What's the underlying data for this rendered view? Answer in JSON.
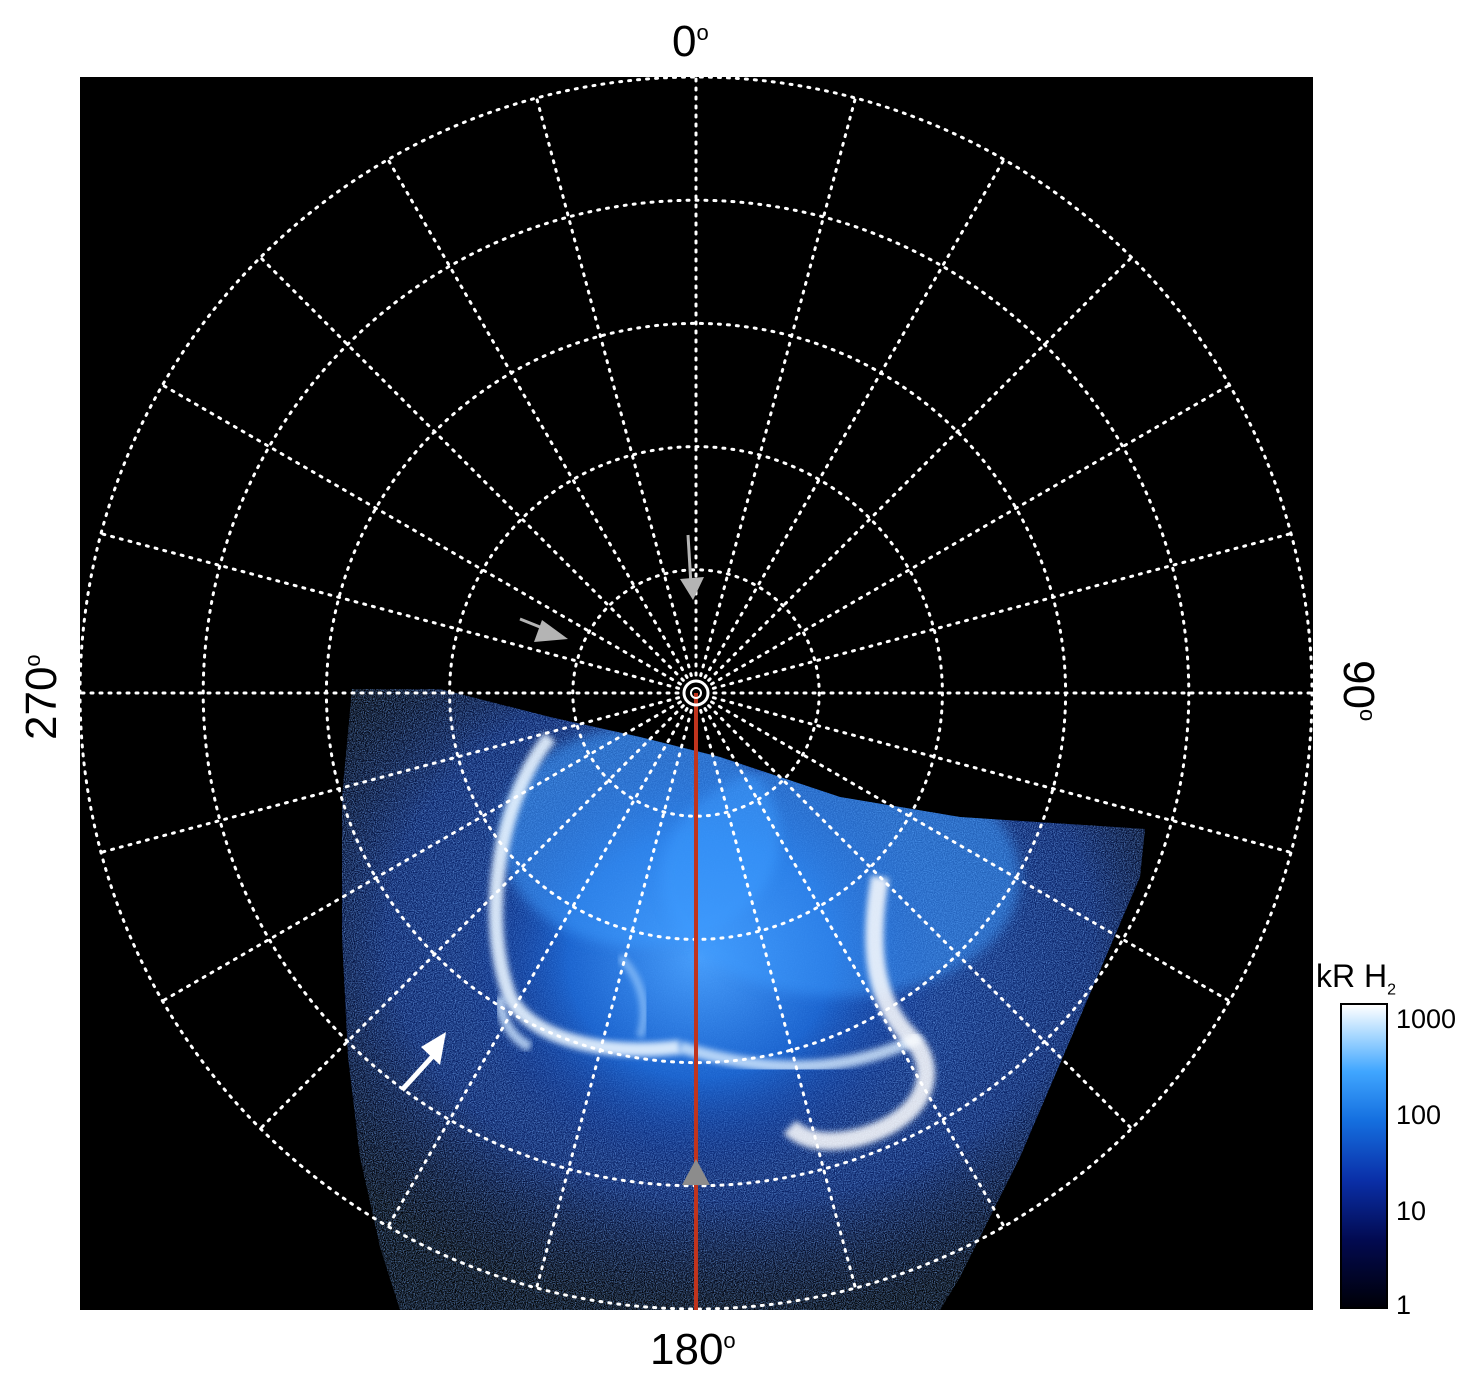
{
  "angles": {
    "top": "0",
    "right": "90",
    "bottom": "180",
    "left": "270",
    "degree_symbol": "o"
  },
  "colorbar": {
    "title_main": "kR H",
    "title_sub": "2",
    "ticks": [
      "1000",
      "100",
      "10",
      "1"
    ],
    "scale": "log"
  },
  "colors": {
    "background": "#000000",
    "grid": "#ffffff",
    "meridian_line": "#c0341d",
    "arrow_white": "#ffffff",
    "arrow_gray": "#b4b4b4",
    "aurora_glow": "#1a6fe0"
  },
  "grid": {
    "style": "dotted",
    "meridian_spacing_deg": 15,
    "latitude_circles": 5
  }
}
